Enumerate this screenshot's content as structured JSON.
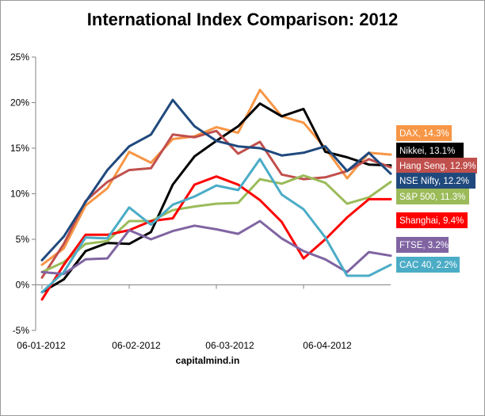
{
  "chart_data": {
    "type": "line",
    "title": "International Index Comparison: 2012",
    "source": "capitalmind.in",
    "xlabel": "",
    "ylabel": "",
    "ylim": [
      -5,
      25
    ],
    "y_ticks": [
      "-5%",
      "0%",
      "5%",
      "10%",
      "15%",
      "20%",
      "25%"
    ],
    "y_tick_values": [
      -5,
      0,
      5,
      10,
      15,
      20,
      25
    ],
    "x_tick_labels": [
      "06-01-2012",
      "06-02-2012",
      "06-03-2012",
      "06-04-2012"
    ],
    "x_tick_positions": [
      0,
      4.0,
      8.0,
      12.0
    ],
    "grid": false,
    "legend": "end-of-line labels on right",
    "series": [
      {
        "name": "DAX",
        "label": "DAX, 14.3%",
        "color": "#f79646",
        "values": [
          2.2,
          4.0,
          8.7,
          10.6,
          14.6,
          13.4,
          16.0,
          16.3,
          17.3,
          16.7,
          21.4,
          18.5,
          17.8,
          15.0,
          11.7,
          14.5,
          14.3
        ]
      },
      {
        "name": "Nikkei",
        "label": "Nikkei, 13.1%",
        "color": "#000000",
        "values": [
          -0.8,
          0.6,
          3.7,
          4.6,
          4.5,
          5.8,
          11.0,
          14.1,
          15.8,
          17.4,
          19.9,
          18.5,
          19.3,
          14.6,
          14.0,
          13.2,
          13.1
        ]
      },
      {
        "name": "Hang Seng",
        "label": "Hang Seng, 12.9%",
        "color": "#c0504d",
        "values": [
          0.8,
          4.5,
          9.2,
          11.3,
          12.6,
          12.8,
          16.5,
          16.2,
          16.9,
          14.4,
          15.7,
          12.1,
          11.6,
          11.8,
          12.5,
          13.8,
          12.9
        ]
      },
      {
        "name": "NSE Nifty",
        "label": "NSE Nifty,  12.2%",
        "color": "#1f497d",
        "values": [
          2.7,
          5.3,
          9.1,
          12.6,
          15.2,
          16.5,
          20.3,
          17.4,
          15.8,
          15.2,
          15.0,
          14.2,
          14.5,
          15.2,
          12.5,
          14.5,
          12.2
        ]
      },
      {
        "name": "S&P 500",
        "label": "S&P 500, 11.3%",
        "color": "#9bbb59",
        "values": [
          1.4,
          2.5,
          4.5,
          4.8,
          7.0,
          7.0,
          8.2,
          8.6,
          8.9,
          9.0,
          11.6,
          11.1,
          12.0,
          11.2,
          8.9,
          9.6,
          11.3
        ]
      },
      {
        "name": "Shanghai",
        "label": "Shanghai, 9.4%",
        "color": "#ff0000",
        "values": [
          -1.6,
          2.2,
          5.5,
          5.5,
          6.0,
          7.0,
          7.3,
          11.0,
          11.9,
          11.0,
          9.3,
          6.9,
          2.9,
          5.0,
          7.4,
          9.4,
          9.4
        ]
      },
      {
        "name": "FTSE",
        "label": "FTSE, 3.2%",
        "color": "#8064a2",
        "values": [
          1.4,
          1.2,
          2.8,
          2.9,
          6.0,
          5.0,
          5.9,
          6.5,
          6.1,
          5.6,
          7.0,
          5.1,
          3.7,
          2.8,
          1.4,
          3.6,
          3.2
        ]
      },
      {
        "name": "CAC 40",
        "label": "CAC 40, 2.2%",
        "color": "#4bacc6",
        "values": [
          -0.8,
          1.4,
          5.2,
          5.1,
          8.5,
          6.6,
          8.8,
          9.7,
          10.9,
          10.4,
          13.8,
          9.9,
          8.3,
          5.2,
          1.0,
          1.0,
          2.2
        ]
      }
    ]
  }
}
